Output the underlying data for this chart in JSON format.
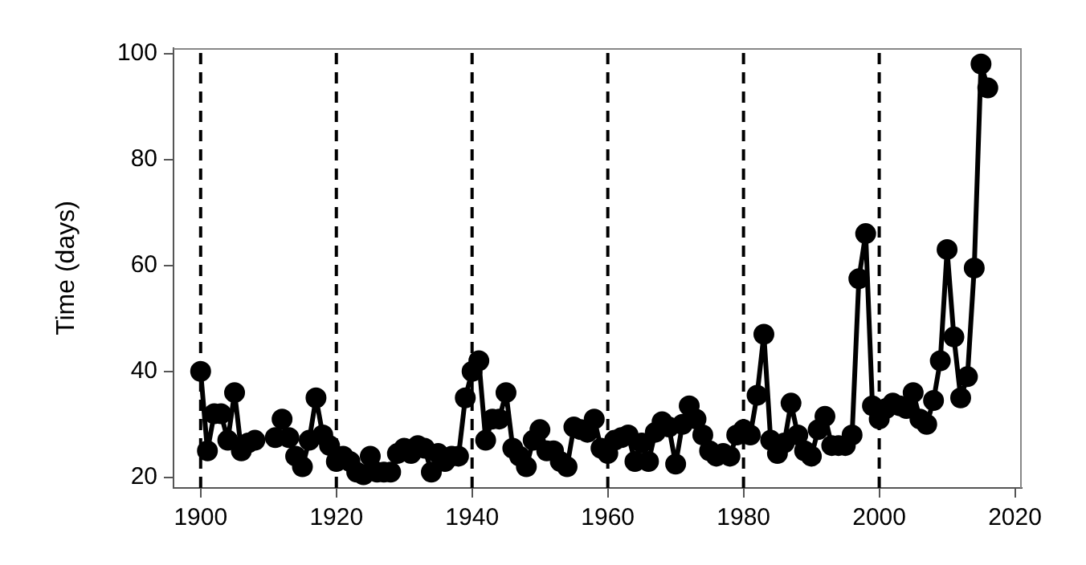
{
  "chart_data": {
    "type": "line",
    "ylabel": "Time (days)",
    "x": [
      1900,
      1901,
      1902,
      1903,
      1904,
      1905,
      1906,
      1907,
      1908,
      1909,
      1910,
      1911,
      1912,
      1913,
      1914,
      1915,
      1916,
      1917,
      1918,
      1919,
      1920,
      1921,
      1922,
      1923,
      1924,
      1925,
      1926,
      1927,
      1928,
      1929,
      1930,
      1931,
      1932,
      1933,
      1934,
      1935,
      1936,
      1937,
      1938,
      1939,
      1940,
      1941,
      1942,
      1943,
      1944,
      1945,
      1946,
      1947,
      1948,
      1949,
      1950,
      1951,
      1952,
      1953,
      1954,
      1955,
      1956,
      1957,
      1958,
      1959,
      1960,
      1961,
      1962,
      1963,
      1964,
      1965,
      1966,
      1967,
      1968,
      1969,
      1970,
      1971,
      1972,
      1973,
      1974,
      1975,
      1976,
      1977,
      1978,
      1979,
      1980,
      1981,
      1982,
      1983,
      1984,
      1985,
      1986,
      1987,
      1988,
      1989,
      1990,
      1991,
      1992,
      1993,
      1994,
      1995,
      1996,
      1997,
      1998,
      1999,
      2000,
      2001,
      2002,
      2003,
      2004,
      2005,
      2006,
      2007,
      2008,
      2009,
      2010,
      2011,
      2012,
      2013,
      2014,
      2015,
      2016
    ],
    "series": [
      {
        "color": "#000000",
        "values": [
          40,
          25,
          32,
          32,
          27,
          36,
          25,
          26.5,
          27,
          null,
          null,
          27.5,
          31,
          27.5,
          24,
          22,
          27,
          35,
          28,
          26,
          23,
          24,
          23,
          21,
          20.5,
          24,
          21,
          21,
          21,
          24.5,
          25.5,
          24.5,
          26,
          25.5,
          21,
          24.5,
          23,
          24,
          24,
          35,
          40,
          42,
          27,
          31,
          31,
          36,
          25.5,
          24,
          22,
          27,
          29,
          25,
          25,
          23,
          22,
          29.5,
          29,
          28.5,
          31,
          25.5,
          24.5,
          27,
          27.5,
          28,
          23,
          26.5,
          23,
          28.5,
          30.5,
          29.5,
          22.5,
          30,
          33.5,
          31,
          28,
          25,
          24,
          24.5,
          24,
          28,
          29,
          28,
          35.5,
          47,
          27,
          24.5,
          26.5,
          34,
          28,
          25,
          24,
          29,
          31.5,
          26,
          26,
          26,
          28,
          57.5,
          66,
          33.5,
          31,
          33,
          34,
          33.5,
          33,
          36,
          31,
          30,
          34.5,
          42,
          63,
          46.5,
          35,
          39,
          59.5,
          98,
          93.5
        ]
      }
    ],
    "xlim": [
      1896,
      2021
    ],
    "ylim": [
      18,
      101
    ],
    "xticks": [
      1900,
      1920,
      1940,
      1960,
      1980,
      2000,
      2020
    ],
    "yticks": [
      20,
      40,
      60,
      80,
      100
    ],
    "ref_lines": [
      {
        "axis": "x",
        "value": 1900,
        "color": "#000000",
        "line_style": "dashed"
      },
      {
        "axis": "x",
        "value": 1920,
        "color": "#000000",
        "line_style": "dashed"
      },
      {
        "axis": "x",
        "value": 1940,
        "color": "#000000",
        "line_style": "dashed"
      },
      {
        "axis": "x",
        "value": 1960,
        "color": "#000000",
        "line_style": "dashed"
      },
      {
        "axis": "x",
        "value": 1980,
        "color": "#000000",
        "line_style": "dashed"
      },
      {
        "axis": "x",
        "value": 2000,
        "color": "#000000",
        "line_style": "dashed"
      }
    ],
    "grid": false,
    "legend": false,
    "marker": "circle",
    "line_style": "solid"
  }
}
